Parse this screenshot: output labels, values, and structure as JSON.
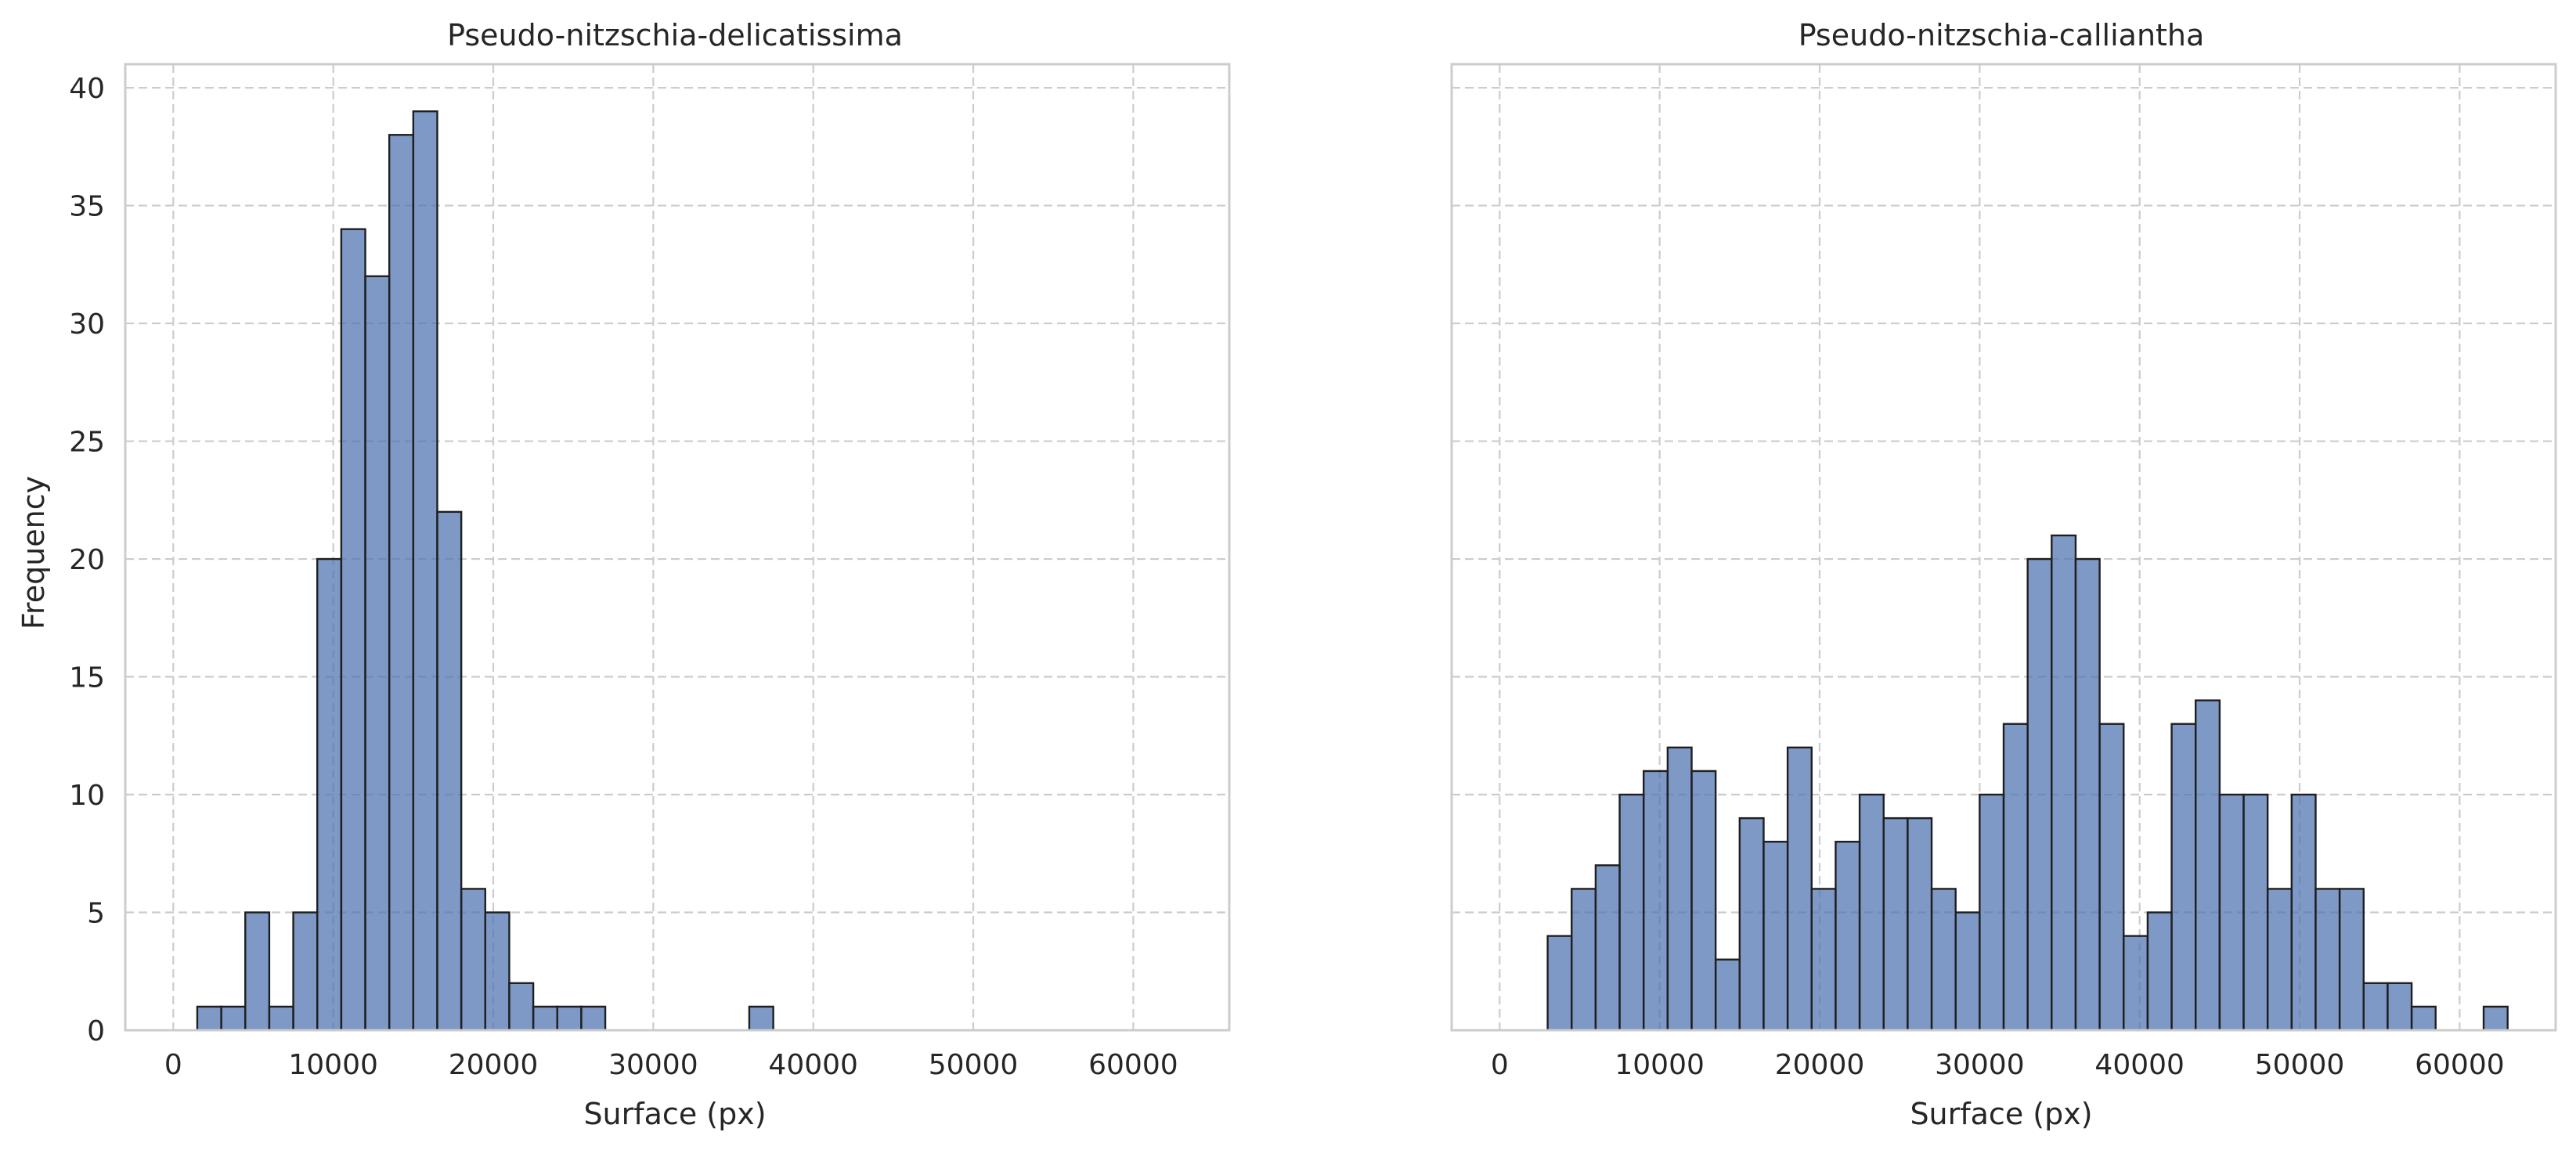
{
  "chart_data": [
    {
      "type": "bar",
      "title": "Pseudo-nitzschia-delicatissima",
      "xlabel": "Surface (px)",
      "ylabel": "Frequency",
      "xlim": [
        -3000,
        66000
      ],
      "ylim": [
        0,
        41
      ],
      "xticks": [
        0,
        10000,
        20000,
        30000,
        40000,
        50000,
        60000
      ],
      "yticks": [
        0,
        5,
        10,
        15,
        20,
        25,
        30,
        35,
        40
      ],
      "grid": true,
      "bin_width": 1500,
      "bins": [
        {
          "x0": 1500,
          "count": 1
        },
        {
          "x0": 3000,
          "count": 1
        },
        {
          "x0": 4500,
          "count": 5
        },
        {
          "x0": 6000,
          "count": 1
        },
        {
          "x0": 7500,
          "count": 5
        },
        {
          "x0": 9000,
          "count": 20
        },
        {
          "x0": 10500,
          "count": 34
        },
        {
          "x0": 12000,
          "count": 32
        },
        {
          "x0": 13500,
          "count": 38
        },
        {
          "x0": 15000,
          "count": 39
        },
        {
          "x0": 16500,
          "count": 22
        },
        {
          "x0": 18000,
          "count": 6
        },
        {
          "x0": 19500,
          "count": 5
        },
        {
          "x0": 21000,
          "count": 2
        },
        {
          "x0": 22500,
          "count": 1
        },
        {
          "x0": 24000,
          "count": 1
        },
        {
          "x0": 25500,
          "count": 1
        },
        {
          "x0": 36000,
          "count": 1
        }
      ]
    },
    {
      "type": "bar",
      "title": "Pseudo-nitzschia-calliantha",
      "xlabel": "Surface (px)",
      "ylabel": "",
      "xlim": [
        -3000,
        66000
      ],
      "ylim": [
        0,
        41
      ],
      "xticks": [
        0,
        10000,
        20000,
        30000,
        40000,
        50000,
        60000
      ],
      "yticks": [
        0,
        5,
        10,
        15,
        20,
        25,
        30,
        35,
        40
      ],
      "grid": true,
      "bin_width": 1500,
      "bins": [
        {
          "x0": 3000,
          "count": 4
        },
        {
          "x0": 4500,
          "count": 6
        },
        {
          "x0": 6000,
          "count": 7
        },
        {
          "x0": 7500,
          "count": 10
        },
        {
          "x0": 9000,
          "count": 11
        },
        {
          "x0": 10500,
          "count": 12
        },
        {
          "x0": 12000,
          "count": 11
        },
        {
          "x0": 13500,
          "count": 3
        },
        {
          "x0": 15000,
          "count": 9
        },
        {
          "x0": 16500,
          "count": 8
        },
        {
          "x0": 18000,
          "count": 12
        },
        {
          "x0": 19500,
          "count": 6
        },
        {
          "x0": 21000,
          "count": 8
        },
        {
          "x0": 22500,
          "count": 10
        },
        {
          "x0": 24000,
          "count": 9
        },
        {
          "x0": 25500,
          "count": 9
        },
        {
          "x0": 27000,
          "count": 6
        },
        {
          "x0": 28500,
          "count": 5
        },
        {
          "x0": 30000,
          "count": 10
        },
        {
          "x0": 31500,
          "count": 13
        },
        {
          "x0": 33000,
          "count": 20
        },
        {
          "x0": 34500,
          "count": 21
        },
        {
          "x0": 36000,
          "count": 20
        },
        {
          "x0": 37500,
          "count": 13
        },
        {
          "x0": 39000,
          "count": 4
        },
        {
          "x0": 40500,
          "count": 5
        },
        {
          "x0": 42000,
          "count": 13
        },
        {
          "x0": 43500,
          "count": 14
        },
        {
          "x0": 45000,
          "count": 10
        },
        {
          "x0": 46500,
          "count": 10
        },
        {
          "x0": 48000,
          "count": 6
        },
        {
          "x0": 49500,
          "count": 10
        },
        {
          "x0": 51000,
          "count": 6
        },
        {
          "x0": 52500,
          "count": 6
        },
        {
          "x0": 54000,
          "count": 2
        },
        {
          "x0": 55500,
          "count": 2
        },
        {
          "x0": 57000,
          "count": 1
        },
        {
          "x0": 61500,
          "count": 1
        }
      ]
    }
  ],
  "colors": {
    "bar_fill": "#4c72b0",
    "bar_edge": "#1f1f1f",
    "grid": "#cccccc",
    "axes_edge": "#cccccc",
    "text": "#262626"
  }
}
